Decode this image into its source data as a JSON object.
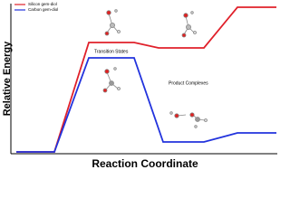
{
  "axes": {
    "y_label": "Relative Energy",
    "x_label": "Reaction Coordinate"
  },
  "legend": [
    "Silicon gem-diol",
    "Carbon gem-diol"
  ],
  "annotations": [
    "Transition States",
    "Product Complexes"
  ]
}
